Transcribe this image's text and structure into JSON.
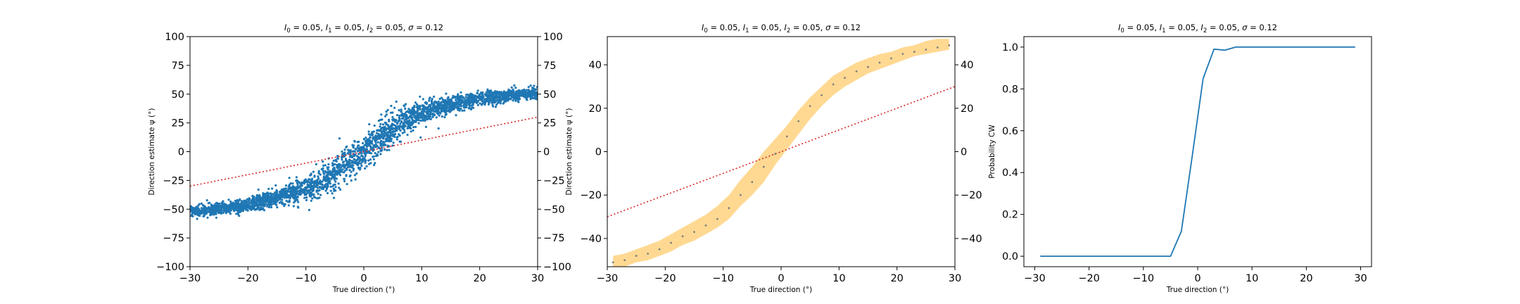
{
  "figure": {
    "background": "#ffffff",
    "colors": {
      "scatter": "#1f77b4",
      "reference": "#d62728",
      "band": "#ffd27f",
      "mean_points": "#7f7f7f",
      "line": "#1f77b4"
    }
  },
  "chart_data": [
    {
      "type": "scatter",
      "title": "I0 = 0.05, I1 = 0.05, I2 = 0.05, σ = 0.12",
      "title_parts": [
        {
          "t": "I",
          "style": "italic"
        },
        {
          "t": "0",
          "style": "sub"
        },
        {
          "t": " = 0.05, "
        },
        {
          "t": "I",
          "style": "italic"
        },
        {
          "t": "1",
          "style": "sub"
        },
        {
          "t": " = 0.05, "
        },
        {
          "t": "I",
          "style": "italic"
        },
        {
          "t": "2",
          "style": "sub"
        },
        {
          "t": " = 0.05, "
        },
        {
          "t": "σ",
          "style": "italic"
        },
        {
          "t": " = 0.12"
        }
      ],
      "xlabel": "True direction (°)",
      "ylabel": "Direction estimate ψ (°)",
      "xlim": [
        -30,
        30
      ],
      "ylim": [
        -100,
        100
      ],
      "xticks": [
        -30,
        -20,
        -10,
        0,
        10,
        20,
        30
      ],
      "xtick_labels": [
        "−30",
        "−20",
        "−10",
        "0",
        "10",
        "20",
        "30"
      ],
      "yticks": [
        -100,
        -75,
        -50,
        -25,
        0,
        25,
        50,
        75,
        100
      ],
      "ytick_labels": [
        "−100",
        "−75",
        "−50",
        "−25",
        "0",
        "25",
        "50",
        "75",
        "100"
      ],
      "right_axis": {
        "ticks": [
          -100,
          -75,
          -50,
          -25,
          0,
          25,
          50,
          75,
          100
        ],
        "labels": [
          "−100",
          "−75",
          "−50",
          "−25",
          "0",
          "25",
          "50",
          "75",
          "100"
        ]
      },
      "grid": false,
      "series": [
        {
          "kind": "points",
          "color": "#1f77b4",
          "approx_count": 3000,
          "trend_x": [
            -30,
            -25,
            -20,
            -15,
            -10,
            -7,
            -5,
            -3,
            -1,
            0,
            1,
            3,
            5,
            7,
            10,
            15,
            20,
            25,
            30
          ],
          "trend_y": [
            -52,
            -50,
            -46,
            -40,
            -32,
            -25,
            -18,
            -10,
            -4,
            0,
            4,
            12,
            20,
            27,
            34,
            41,
            46,
            49,
            51
          ],
          "spread": [
            2.5,
            2.5,
            3,
            4,
            5,
            6,
            7,
            7,
            7,
            7,
            7,
            7,
            7,
            6,
            5,
            4,
            3,
            2.5,
            2.5
          ]
        },
        {
          "kind": "reference-line",
          "style": "dotted",
          "color": "#d62728",
          "x": [
            -30,
            30
          ],
          "y": [
            -30,
            30
          ]
        }
      ]
    },
    {
      "type": "area",
      "title": "I0 = 0.05, I1 = 0.05, I2 = 0.05, σ = 0.12",
      "title_parts": [
        {
          "t": "I",
          "style": "italic"
        },
        {
          "t": "0",
          "style": "sub"
        },
        {
          "t": " = 0.05, "
        },
        {
          "t": "I",
          "style": "italic"
        },
        {
          "t": "1",
          "style": "sub"
        },
        {
          "t": " = 0.05, "
        },
        {
          "t": "I",
          "style": "italic"
        },
        {
          "t": "2",
          "style": "sub"
        },
        {
          "t": " = 0.05, "
        },
        {
          "t": "σ",
          "style": "italic"
        },
        {
          "t": " = 0.12"
        }
      ],
      "xlabel": "True direction (°)",
      "ylabel": "Direction estimate ψ (°)",
      "xlim": [
        -30,
        30
      ],
      "ylim": [
        -53,
        53
      ],
      "xticks": [
        -30,
        -20,
        -10,
        0,
        10,
        20,
        30
      ],
      "xtick_labels": [
        "−30",
        "−20",
        "−10",
        "0",
        "10",
        "20",
        "30"
      ],
      "yticks": [
        -40,
        -20,
        0,
        20,
        40
      ],
      "ytick_labels": [
        "−40",
        "−20",
        "0",
        "20",
        "40"
      ],
      "right_axis": {
        "ticks": [
          -40,
          -20,
          0,
          20,
          40
        ],
        "labels": [
          "−40",
          "−20",
          "0",
          "20",
          "40"
        ]
      },
      "grid": false,
      "x": [
        -29,
        -27,
        -25,
        -23,
        -21,
        -19,
        -17,
        -15,
        -13,
        -11,
        -9,
        -7,
        -5,
        -3,
        -1,
        1,
        3,
        5,
        7,
        9,
        11,
        13,
        15,
        17,
        19,
        21,
        23,
        25,
        27,
        29
      ],
      "series": [
        {
          "name": "mean",
          "kind": "points",
          "color": "#7f7f7f",
          "values": [
            -51,
            -50,
            -48,
            -47,
            -45,
            -42,
            -39,
            -37,
            -34,
            -31,
            -26,
            -20,
            -14,
            -7,
            -1,
            7,
            14,
            21,
            26,
            31,
            34,
            37,
            39,
            41,
            43,
            45,
            46,
            47,
            48,
            49
          ]
        },
        {
          "name": "lower",
          "kind": "band-edge",
          "color": "#ffd27f",
          "values": [
            -53,
            -53,
            -51,
            -50,
            -48,
            -46,
            -43,
            -41,
            -38,
            -35,
            -31,
            -25,
            -20,
            -14,
            -6,
            1,
            8,
            15,
            21,
            26,
            30,
            33,
            36,
            38,
            40,
            42,
            44,
            45,
            46,
            47
          ]
        },
        {
          "name": "upper",
          "kind": "band-edge",
          "color": "#ffd27f",
          "values": [
            -48,
            -47,
            -45,
            -43,
            -41,
            -38,
            -35,
            -32,
            -29,
            -25,
            -20,
            -13,
            -7,
            0,
            6,
            12,
            19,
            25,
            30,
            35,
            38,
            41,
            43,
            45,
            46,
            48,
            49,
            51,
            52,
            52
          ]
        },
        {
          "name": "reference",
          "kind": "reference-line",
          "style": "dotted",
          "color": "#d62728",
          "x": [
            -30,
            30
          ],
          "y": [
            -30,
            30
          ]
        }
      ]
    },
    {
      "type": "line",
      "title": "I0 = 0.05, I1 = 0.05, I2 = 0.05, σ = 0.12",
      "title_parts": [
        {
          "t": "I",
          "style": "italic"
        },
        {
          "t": "0",
          "style": "sub"
        },
        {
          "t": " = 0.05, "
        },
        {
          "t": "I",
          "style": "italic"
        },
        {
          "t": "1",
          "style": "sub"
        },
        {
          "t": " = 0.05, "
        },
        {
          "t": "I",
          "style": "italic"
        },
        {
          "t": "2",
          "style": "sub"
        },
        {
          "t": " = 0.05, "
        },
        {
          "t": "σ",
          "style": "italic"
        },
        {
          "t": " = 0.12"
        }
      ],
      "xlabel": "True direction (°)",
      "ylabel": "Probability CW",
      "xlim": [
        -32,
        32
      ],
      "ylim": [
        -0.05,
        1.05
      ],
      "xticks": [
        -30,
        -20,
        -10,
        0,
        10,
        20,
        30
      ],
      "xtick_labels": [
        "−30",
        "−20",
        "−10",
        "0",
        "10",
        "20",
        "30"
      ],
      "yticks": [
        0,
        0.2,
        0.4,
        0.6,
        0.8,
        1.0
      ],
      "ytick_labels": [
        "0.0",
        "0.2",
        "0.4",
        "0.6",
        "0.8",
        "1.0"
      ],
      "grid": false,
      "series": [
        {
          "kind": "line",
          "color": "#1f77b4",
          "x": [
            -29,
            -27,
            -25,
            -23,
            -21,
            -19,
            -17,
            -15,
            -13,
            -11,
            -9,
            -7,
            -5,
            -3,
            -1,
            1,
            3,
            5,
            7,
            9,
            11,
            13,
            15,
            17,
            19,
            21,
            23,
            25,
            27,
            29
          ],
          "values": [
            0,
            0,
            0,
            0,
            0,
            0,
            0,
            0,
            0,
            0,
            0,
            0,
            0,
            0.12,
            0.48,
            0.85,
            0.99,
            0.985,
            1,
            1,
            1,
            1,
            1,
            1,
            1,
            1,
            1,
            1,
            1,
            1
          ]
        }
      ]
    }
  ]
}
